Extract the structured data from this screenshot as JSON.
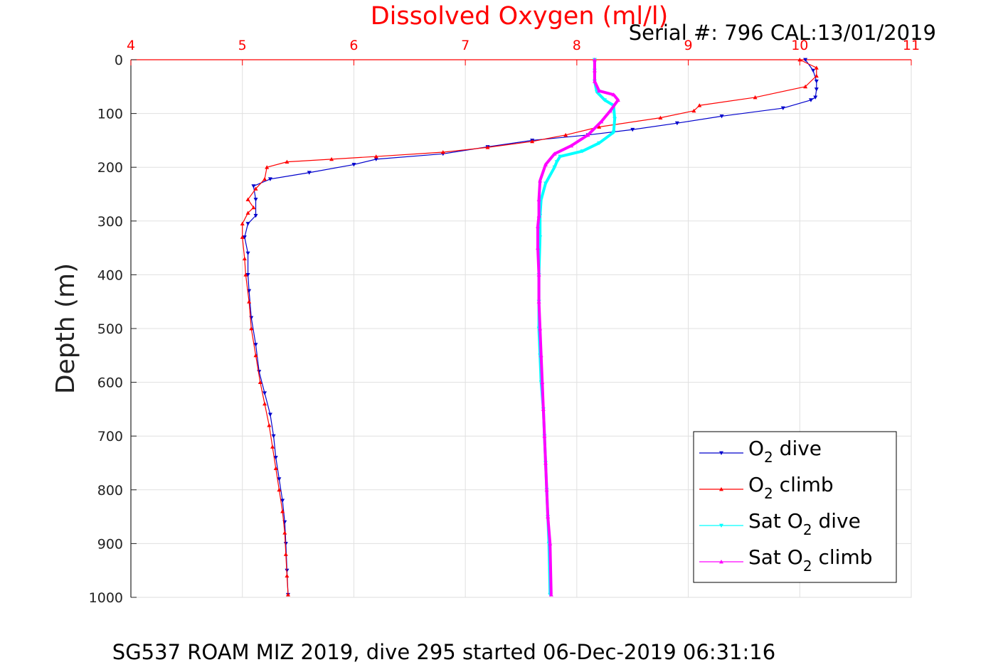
{
  "chart_data": {
    "type": "line",
    "title": "Dissolved Oxygen (ml/l)",
    "subtitle": "Serial #: 796  CAL:13/01/2019",
    "caption": "SG537 ROAM MIZ 2019, dive 295 started 06-Dec-2019 06:31:16",
    "xlabel": "",
    "ylabel": "Depth (m)",
    "xlim": [
      4,
      11
    ],
    "ylim": [
      0,
      1000
    ],
    "y_reversed": true,
    "x_axis_position": "top",
    "xticks": [
      "4",
      "5",
      "6",
      "7",
      "8",
      "9",
      "10",
      "11"
    ],
    "yticks": [
      "0",
      "100",
      "200",
      "300",
      "400",
      "500",
      "600",
      "700",
      "800",
      "900",
      "1000"
    ],
    "grid": true,
    "legend_position": "bottom-right",
    "colors": {
      "title": "#ff0000",
      "xticks": "#ff0000",
      "axis": "#ff0000",
      "grid": "#e0e0e0"
    },
    "series": [
      {
        "name": "O₂ dive",
        "legend": {
          "main": "O",
          "sub": "2",
          "after": " dive"
        },
        "color": "#0000cc",
        "marker": "triangle-down",
        "x": [
          10.05,
          10.12,
          10.15,
          10.15,
          10.14,
          10.1,
          9.85,
          9.3,
          8.9,
          8.5,
          8.1,
          7.6,
          7.2,
          6.8,
          6.2,
          6.0,
          5.6,
          5.25,
          5.1,
          5.12,
          5.12,
          5.05,
          5.02,
          5.05,
          5.05,
          5.06,
          5.08,
          5.12,
          5.15,
          5.2,
          5.25,
          5.28,
          5.3,
          5.33,
          5.36,
          5.38,
          5.39,
          5.4,
          5.41
        ],
        "y": [
          0,
          20,
          40,
          55,
          70,
          75,
          90,
          105,
          118,
          130,
          140,
          150,
          162,
          175,
          185,
          195,
          210,
          222,
          235,
          260,
          290,
          305,
          330,
          360,
          400,
          430,
          480,
          530,
          580,
          620,
          660,
          700,
          740,
          780,
          820,
          860,
          900,
          950,
          995
        ]
      },
      {
        "name": "O₂ climb",
        "legend": {
          "main": "O",
          "sub": "2",
          "after": " climb"
        },
        "color": "#ff0000",
        "marker": "triangle-up",
        "x": [
          10.0,
          10.15,
          10.15,
          10.05,
          9.6,
          9.1,
          9.05,
          8.75,
          8.2,
          7.9,
          7.6,
          7.2,
          6.8,
          6.2,
          5.8,
          5.4,
          5.22,
          5.2,
          5.12,
          5.05,
          5.1,
          5.05,
          5.0,
          5.0,
          5.02,
          5.03,
          5.06,
          5.08,
          5.12,
          5.16,
          5.2,
          5.24,
          5.27,
          5.3,
          5.33,
          5.36,
          5.38,
          5.39,
          5.4,
          5.41
        ],
        "y": [
          0,
          15,
          30,
          50,
          70,
          85,
          95,
          108,
          125,
          140,
          152,
          163,
          172,
          180,
          185,
          190,
          200,
          222,
          240,
          260,
          275,
          285,
          305,
          330,
          370,
          400,
          450,
          500,
          550,
          600,
          640,
          680,
          720,
          760,
          800,
          840,
          880,
          920,
          960,
          995
        ]
      },
      {
        "name": "Sat O₂ dive",
        "legend": {
          "main": "Sat O",
          "sub": "2",
          "after": " dive"
        },
        "color": "#00ffff",
        "marker": "triangle-down",
        "x": [
          8.16,
          8.16,
          8.16,
          8.18,
          8.25,
          8.33,
          8.34,
          8.33,
          8.2,
          8.05,
          7.85,
          7.82,
          7.8,
          7.72,
          7.68,
          7.67,
          7.67,
          7.66,
          7.66,
          7.66,
          7.67,
          7.68,
          7.7,
          7.71,
          7.72,
          7.73,
          7.74,
          7.75,
          7.76
        ],
        "y": [
          0,
          20,
          40,
          60,
          75,
          85,
          110,
          135,
          155,
          170,
          180,
          190,
          200,
          230,
          260,
          290,
          330,
          400,
          450,
          500,
          550,
          600,
          650,
          700,
          750,
          800,
          850,
          900,
          995
        ]
      },
      {
        "name": "Sat O₂ climb",
        "legend": {
          "main": "Sat O",
          "sub": "2",
          "after": " climb"
        },
        "color": "#ff00ff",
        "marker": "triangle-up",
        "x": [
          8.16,
          8.16,
          8.16,
          8.2,
          8.33,
          8.37,
          8.3,
          8.22,
          8.1,
          7.95,
          7.8,
          7.72,
          7.67,
          7.66,
          7.66,
          7.65,
          7.65,
          7.66,
          7.66,
          7.67,
          7.68,
          7.69,
          7.7,
          7.71,
          7.72,
          7.73,
          7.74,
          7.76,
          7.77
        ],
        "y": [
          0,
          20,
          40,
          58,
          65,
          75,
          95,
          115,
          140,
          160,
          175,
          195,
          225,
          260,
          290,
          310,
          350,
          400,
          450,
          500,
          550,
          600,
          650,
          700,
          750,
          800,
          850,
          900,
          995
        ]
      }
    ]
  }
}
